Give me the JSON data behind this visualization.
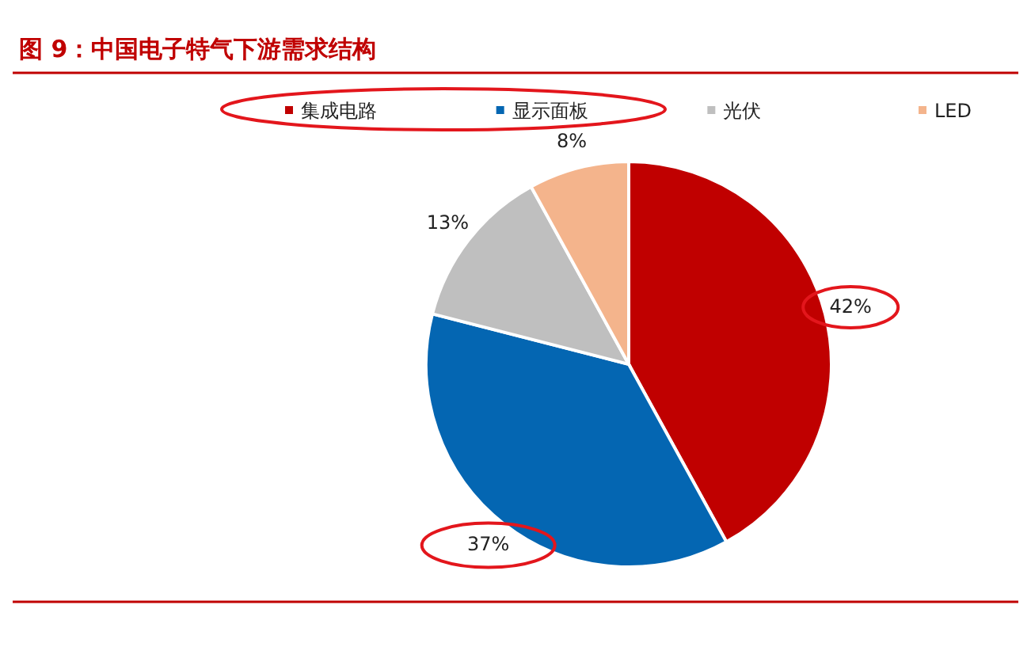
{
  "chart_data": {
    "type": "pie",
    "title": "图 9：中国电子特气下游需求结构",
    "categories": [
      "集成电路",
      "显示面板",
      "光伏",
      "LED"
    ],
    "values": [
      42,
      37,
      13,
      8
    ],
    "colors": [
      "#c00000",
      "#0466b2",
      "#bfbfbf",
      "#f4b48c"
    ],
    "value_labels": [
      "42%",
      "37%",
      "13%",
      "8%"
    ],
    "legend": "top"
  }
}
